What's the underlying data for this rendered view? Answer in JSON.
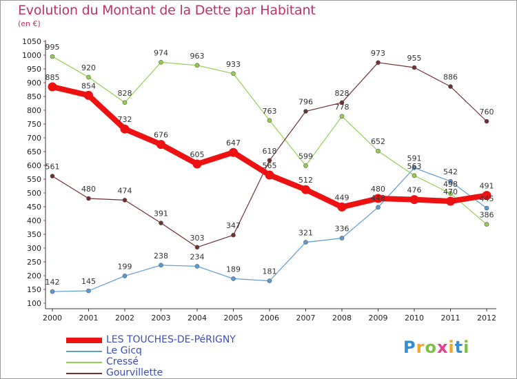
{
  "header": {
    "title": "Evolution du Montant de la Dette par Habitant",
    "subtitle": "(en €)"
  },
  "chart_data": {
    "type": "line",
    "title": "Evolution du Montant de la Dette par Habitant",
    "subtitle": "(en €)",
    "x": [
      "2000",
      "2001",
      "2002",
      "2003",
      "2004",
      "2005",
      "2006",
      "2007",
      "2008",
      "2009",
      "2010",
      "2011",
      "2012"
    ],
    "ylim": [
      100,
      1050
    ],
    "yticks": [
      100,
      150,
      200,
      250,
      300,
      350,
      400,
      450,
      500,
      550,
      600,
      650,
      700,
      750,
      800,
      850,
      900,
      950,
      1000,
      1050
    ],
    "grid": false,
    "legend_position": "bottom-left",
    "series": [
      {
        "name": "Le Gicq",
        "color": "#5b9bd5",
        "values": [
          142,
          145,
          199,
          238,
          234,
          189,
          181,
          321,
          336,
          448,
          591,
          542,
          445
        ]
      },
      {
        "name": "Cressé",
        "color": "#92d050",
        "values": [
          995,
          920,
          828,
          974,
          963,
          933,
          763,
          599,
          778,
          652,
          563,
          498,
          386
        ]
      },
      {
        "name": "Gourvillette",
        "color": "#722f2f",
        "values": [
          561,
          480,
          474,
          391,
          303,
          347,
          618,
          796,
          828,
          973,
          955,
          886,
          760
        ]
      },
      {
        "name": "LES TOUCHES-DE-PéRIGNY",
        "color": "#ee1111",
        "values": [
          885,
          854,
          732,
          676,
          605,
          647,
          565,
          512,
          449,
          480,
          476,
          470,
          491
        ]
      }
    ],
    "legend_order": [
      "LES TOUCHES-DE-PéRIGNY",
      "Le Gicq",
      "Cressé",
      "Gourvillette"
    ]
  },
  "logo": {
    "letters": [
      "P",
      "r",
      "o",
      "x",
      "i",
      "t",
      "i"
    ],
    "colors": [
      "#2f8fd6",
      "#f5a623",
      "#7cc242",
      "#e83e8c",
      "#f5a623",
      "#2f8fd6",
      "#7cc242"
    ]
  }
}
